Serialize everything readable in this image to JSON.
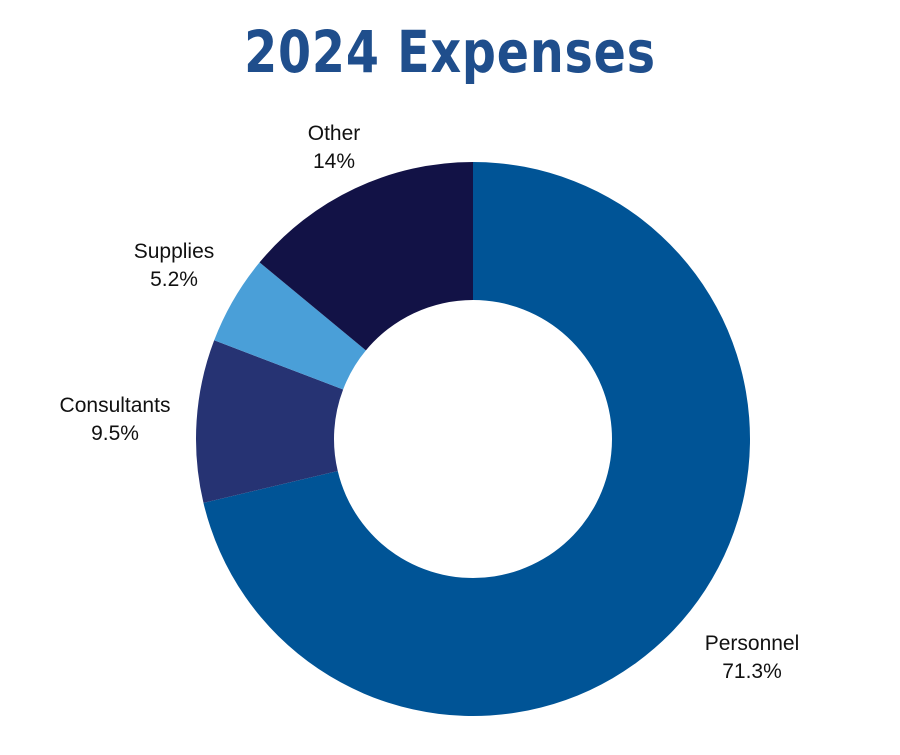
{
  "chart_data": {
    "type": "pie",
    "variant": "donut",
    "title": "2024 Expenses",
    "title_color": "#1F4E8C",
    "slices": [
      {
        "label": "Personnel",
        "value": 71.3,
        "value_label": "71.3%",
        "color": "#005496"
      },
      {
        "label": "Consultants",
        "value": 9.5,
        "value_label": "9.5%",
        "color": "#263373"
      },
      {
        "label": "Supplies",
        "value": 5.2,
        "value_label": "5.2%",
        "color": "#4A9FD8"
      },
      {
        "label": "Other",
        "value": 14,
        "value_label": "14%",
        "color": "#121246"
      }
    ],
    "legend": "none"
  }
}
